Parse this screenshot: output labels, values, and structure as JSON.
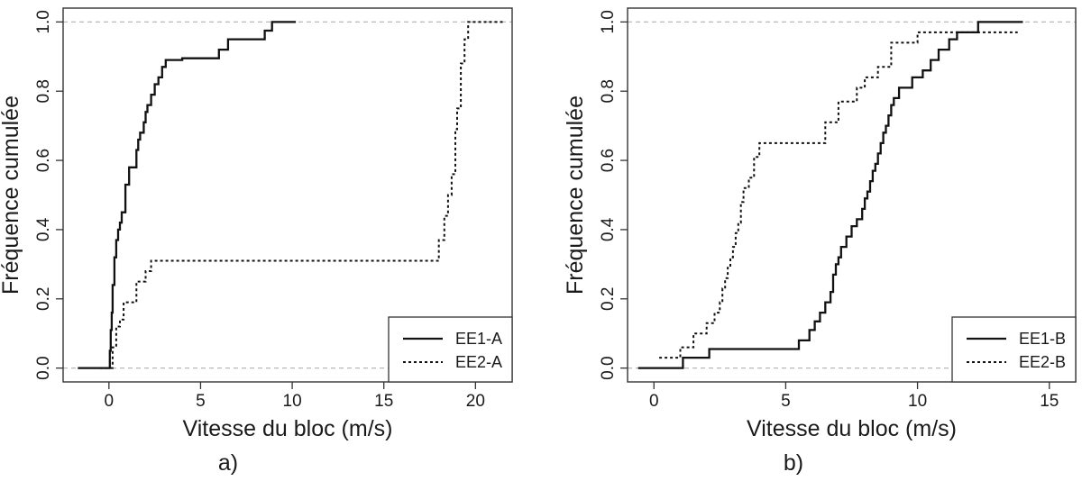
{
  "chart_data": [
    {
      "type": "line",
      "panel_label": "a)",
      "title": "",
      "xlabel": "Vitesse du bloc (m/s)",
      "ylabel": "Fréquence cumulée",
      "xlim": [
        -2.5,
        22
      ],
      "ylim": [
        -0.04,
        1.04
      ],
      "xticks": [
        0,
        5,
        10,
        15,
        20
      ],
      "yticks": [
        0.0,
        0.2,
        0.4,
        0.6,
        0.8,
        1.0
      ],
      "ytick_labels": [
        "0.0",
        "0.2",
        "0.4",
        "0.6",
        "0.8",
        "1.0"
      ],
      "reference_lines_y": [
        0,
        1
      ],
      "grid": false,
      "legend_position": "bottom-right",
      "series": [
        {
          "name": "EE1-A",
          "style": "solid",
          "x": [
            -1.7,
            0.0,
            0.05,
            0.1,
            0.15,
            0.2,
            0.3,
            0.4,
            0.5,
            0.6,
            0.7,
            0.9,
            1.1,
            1.5,
            1.6,
            1.7,
            1.9,
            2.0,
            2.1,
            2.3,
            2.5,
            2.7,
            2.9,
            3.1,
            3.3,
            3.5,
            3.8,
            4.0,
            6.0,
            6.5,
            8.5,
            8.9,
            10.2
          ],
          "y": [
            0.0,
            0.0,
            0.05,
            0.11,
            0.16,
            0.24,
            0.32,
            0.37,
            0.4,
            0.42,
            0.45,
            0.53,
            0.58,
            0.63,
            0.66,
            0.68,
            0.71,
            0.74,
            0.76,
            0.79,
            0.82,
            0.84,
            0.87,
            0.89,
            0.89,
            0.89,
            0.89,
            0.895,
            0.92,
            0.95,
            0.975,
            1.0,
            1.0
          ]
        },
        {
          "name": "EE2-A",
          "style": "dashed",
          "x": [
            -0.5,
            0.2,
            0.4,
            0.6,
            0.8,
            1.0,
            1.5,
            1.7,
            2.0,
            2.3,
            18.0,
            18.3,
            18.5,
            18.7,
            18.9,
            19.0,
            19.2,
            19.4,
            19.6,
            21.5
          ],
          "y": [
            0.0,
            0.06,
            0.12,
            0.14,
            0.19,
            0.19,
            0.25,
            0.25,
            0.28,
            0.31,
            0.37,
            0.44,
            0.5,
            0.56,
            0.69,
            0.75,
            0.88,
            0.95,
            1.0,
            1.0
          ]
        }
      ]
    },
    {
      "type": "line",
      "panel_label": "b)",
      "title": "",
      "xlabel": "Vitesse du bloc (m/s)",
      "ylabel": "Fréquence cumulée",
      "xlim": [
        -1.0,
        16.0
      ],
      "ylim": [
        -0.04,
        1.04
      ],
      "xticks": [
        0,
        5,
        10,
        15
      ],
      "yticks": [
        0.0,
        0.2,
        0.4,
        0.6,
        0.8,
        1.0
      ],
      "ytick_labels": [
        "0.0",
        "0.2",
        "0.4",
        "0.6",
        "0.8",
        "1.0"
      ],
      "reference_lines_y": [
        0,
        1
      ],
      "grid": false,
      "legend_position": "bottom-right",
      "series": [
        {
          "name": "EE1-B",
          "style": "solid",
          "x": [
            -0.6,
            0.0,
            1.1,
            2.1,
            2.5,
            5.5,
            5.9,
            6.1,
            6.3,
            6.5,
            6.7,
            6.8,
            6.9,
            7.0,
            7.1,
            7.3,
            7.5,
            7.7,
            7.9,
            8.0,
            8.1,
            8.2,
            8.3,
            8.4,
            8.5,
            8.6,
            8.7,
            8.8,
            8.9,
            9.0,
            9.1,
            9.3,
            9.5,
            9.8,
            10.0,
            10.2,
            10.5,
            10.8,
            11.2,
            11.5,
            11.8,
            12.0,
            12.3,
            14.0
          ],
          "y": [
            0.0,
            0.0,
            0.03,
            0.055,
            0.055,
            0.08,
            0.11,
            0.135,
            0.16,
            0.19,
            0.22,
            0.27,
            0.3,
            0.32,
            0.35,
            0.38,
            0.41,
            0.43,
            0.46,
            0.49,
            0.51,
            0.54,
            0.57,
            0.59,
            0.62,
            0.65,
            0.68,
            0.7,
            0.73,
            0.76,
            0.78,
            0.81,
            0.81,
            0.84,
            0.84,
            0.86,
            0.89,
            0.92,
            0.95,
            0.97,
            0.97,
            0.97,
            1.0,
            1.0
          ]
        },
        {
          "name": "EE2-B",
          "style": "dashed",
          "x": [
            0.2,
            1.0,
            1.5,
            2.0,
            2.3,
            2.5,
            2.6,
            2.7,
            2.8,
            2.9,
            3.0,
            3.1,
            3.2,
            3.3,
            3.4,
            3.6,
            3.8,
            4.0,
            6.5,
            7.0,
            7.5,
            7.7,
            8.0,
            8.5,
            9.0,
            10.0,
            11.5,
            13.8
          ],
          "y": [
            0.03,
            0.06,
            0.1,
            0.13,
            0.16,
            0.19,
            0.23,
            0.26,
            0.29,
            0.32,
            0.35,
            0.39,
            0.42,
            0.48,
            0.52,
            0.55,
            0.61,
            0.65,
            0.71,
            0.77,
            0.77,
            0.81,
            0.84,
            0.87,
            0.94,
            0.97,
            0.97,
            0.97
          ]
        }
      ]
    }
  ]
}
